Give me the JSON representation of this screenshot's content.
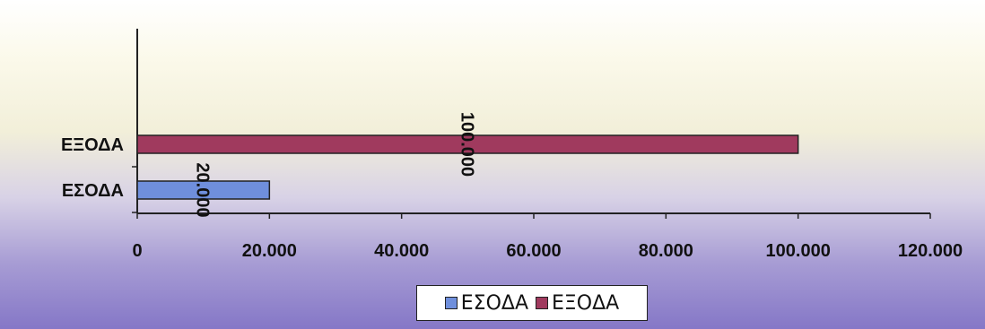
{
  "chart_data": {
    "type": "bar",
    "orientation": "horizontal",
    "categories": [
      "ΕΣΟΔΑ",
      "ΕΞΟΔΑ"
    ],
    "series": [
      {
        "name": "ΕΣΟΔΑ",
        "values": [
          20000,
          null
        ],
        "color": "#6f8fdc",
        "label_color": "#111111"
      },
      {
        "name": "ΕΞΟΔΑ",
        "values": [
          null,
          100000
        ],
        "color": "#a03a5e",
        "label_color": "#ffffff"
      }
    ],
    "data_labels": [
      "20.000",
      "100.000"
    ],
    "x_ticks": [
      0,
      20000,
      40000,
      60000,
      80000,
      100000,
      120000
    ],
    "x_tick_labels": [
      "0",
      "20.000",
      "40.000",
      "60.000",
      "80.000",
      "100.000",
      "120.000"
    ],
    "xlim": [
      0,
      120000
    ],
    "title": "",
    "xlabel": "",
    "ylabel": "",
    "grid": false,
    "legend_position": "bottom"
  }
}
